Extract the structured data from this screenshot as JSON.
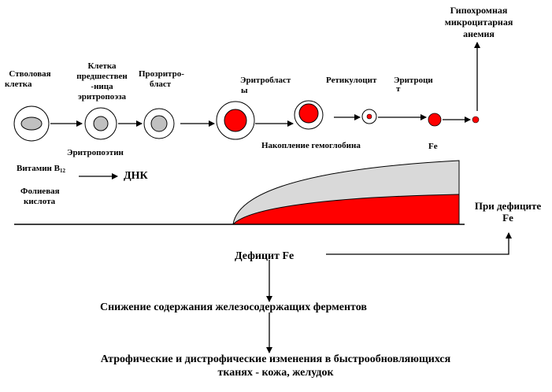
{
  "colors": {
    "red": "#ff0000",
    "gray_nucleus": "#c8c8c8",
    "gray_fill": "#d9d9d9",
    "line": "#000000"
  },
  "stages": [
    {
      "lines": [
        "Стволовая",
        "клетка"
      ]
    },
    {
      "lines": [
        "Клетка",
        "предшествен",
        "-ница",
        "эритропоэза"
      ]
    },
    {
      "lines": [
        "Прозритро-",
        "бласт"
      ]
    },
    {
      "lines": [
        "Эритробласт",
        "ы"
      ]
    },
    {
      "lines": [
        "Ретикулоцит"
      ]
    },
    {
      "lines": [
        "Эритроци",
        "т"
      ]
    }
  ],
  "anemia": {
    "lines": [
      "Гипохромная",
      "микроцитарная",
      "анемия"
    ]
  },
  "hemoglobin_label": "Накопление гемоглобина",
  "fe_label": "Fe",
  "erythropoiesis_label": "Эритропоэтин",
  "vitamin_label": "Витамин B",
  "vitamin_sub": "12",
  "folic_label": {
    "lines": [
      "Фолиевая",
      "кислота"
    ]
  },
  "dna_label": "ДНК",
  "fe_deficit_right": {
    "lines": [
      "При дефиците",
      "Fe"
    ]
  },
  "fe_deficit": "Дефицит Fe",
  "enzymes_reduction": "Снижение содержания железосодержащих ферментов",
  "atrophy": {
    "lines": [
      "Атрофические и дистрофические изменения в быстрообновляющихся",
      "тканях - кожа, желудок"
    ]
  }
}
